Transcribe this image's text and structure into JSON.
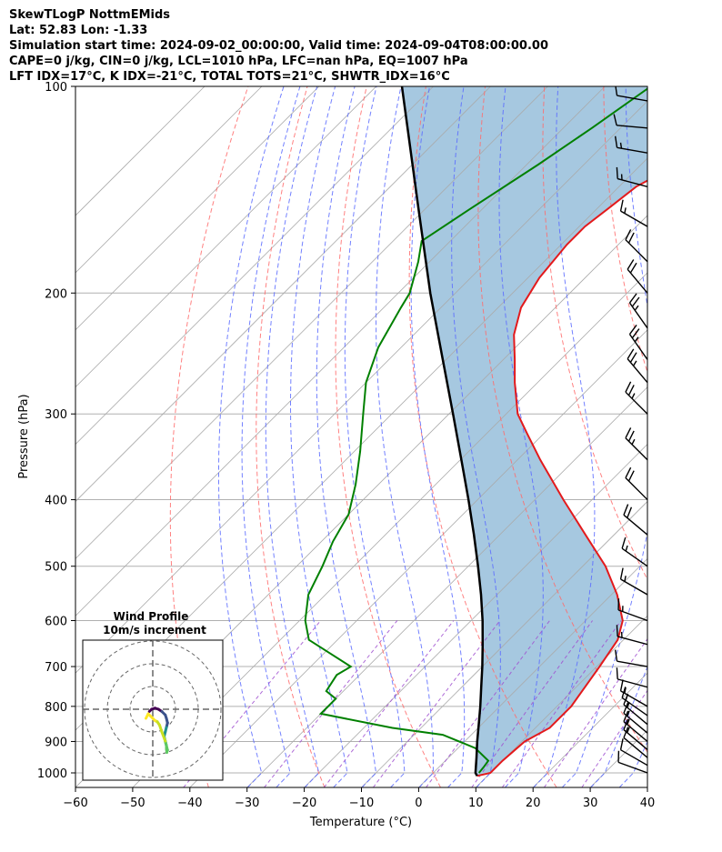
{
  "header": {
    "line1": "SkewTLogP NottmEMids",
    "line2": "Lat: 52.83   Lon: -1.33",
    "line3": "Simulation start time: 2024-09-02_00:00:00, Valid time: 2024-09-04T08:00:00.00",
    "line4": "CAPE=0 j/kg, CIN=0 j/kg, LCL=1010 hPa, LFC=nan hPa, EQ=1007 hPa",
    "line5": "LFT IDX=17°C, K IDX=-21°C, TOTAL TOTS=21°C, SHWTR_IDX=16°C"
  },
  "hodograph": {
    "title": "Wind Profile",
    "subtitle": "10m/s increment"
  },
  "colors": {
    "temperature": "#e31a1c",
    "dewpoint": "#008000",
    "parcel": "#000000",
    "cape_fill": "#a6c8e0",
    "dry_adiabat": "#ff6b6b",
    "moist_adiabat": "#5a6bff",
    "mixing_ratio": "#a050d0",
    "isotherm": "#aaaaaa"
  },
  "chart_data": {
    "type": "line",
    "title": "SkewTLogP NottmEMids",
    "xlabel": "Temperature (°C)",
    "ylabel": "Pressure (hPa)",
    "xlim": [
      -60,
      40
    ],
    "ylim": [
      1050,
      100
    ],
    "x_ticks": [
      -60,
      -50,
      -40,
      -30,
      -20,
      -10,
      0,
      10,
      20,
      30,
      40
    ],
    "x_tick_labels": [
      "−60",
      "−50",
      "−40",
      "−30",
      "−20",
      "−10",
      "0",
      "10",
      "20",
      "30",
      "40"
    ],
    "y_ticks": [
      1000,
      900,
      800,
      700,
      600,
      500,
      400,
      300,
      200,
      100
    ],
    "grid": true,
    "series": [
      {
        "name": "Temperature",
        "pressure": [
          1010,
          1000,
          960,
          900,
          860,
          800,
          700,
          640,
          600,
          550,
          500,
          450,
          400,
          350,
          320,
          300,
          270,
          250,
          230,
          210,
          190,
          170,
          160,
          150,
          140,
          128,
          115,
          105,
          100
        ],
        "values": [
          8.2,
          10,
          10,
          10.5,
          12.5,
          12.5,
          10.5,
          9.0,
          6.5,
          1.0,
          -6.0,
          -15.0,
          -25.0,
          -36.0,
          -43.0,
          -48.0,
          -54.0,
          -58.0,
          -62.5,
          -66.0,
          -68.0,
          -69.0,
          -69.0,
          -68.0,
          -67.0,
          -63.0,
          -59.0,
          -57.0,
          -56.0
        ]
      },
      {
        "name": "Dewpoint",
        "pressure": [
          1000,
          980,
          960,
          920,
          880,
          860,
          820,
          780,
          760,
          720,
          700,
          640,
          600,
          550,
          500,
          460,
          420,
          380,
          340,
          300,
          270,
          240,
          210,
          200,
          180,
          168,
          150,
          130,
          115,
          100
        ],
        "values": [
          8.0,
          7.8,
          7.5,
          3.0,
          -5.0,
          -15.0,
          -30.0,
          -30.0,
          -33.0,
          -34.0,
          -33.0,
          -45.0,
          -49.0,
          -53.0,
          -55.5,
          -58.0,
          -60.0,
          -64.0,
          -69.0,
          -75.0,
          -80.0,
          -84.0,
          -87.0,
          -88.0,
          -92.0,
          -95.0,
          -92.0,
          -88.0,
          -85.0,
          -82.0
        ]
      },
      {
        "name": "Parcel",
        "pressure": [
          1010,
          1000,
          950,
          900,
          850,
          800,
          750,
          700,
          650,
          600,
          550,
          500,
          450,
          400,
          350,
          300,
          250,
          200,
          150,
          100
        ],
        "values": [
          8.2,
          7.4,
          4.9,
          2.2,
          -0.5,
          -3.4,
          -6.6,
          -10.0,
          -13.8,
          -18.0,
          -22.8,
          -28.3,
          -34.5,
          -41.6,
          -49.8,
          -59.3,
          -70.6,
          -84.4,
          -101.5,
          -125.5
        ]
      }
    ],
    "wind_barbs": {
      "pressure": [
        1000,
        975,
        950,
        925,
        900,
        875,
        850,
        825,
        800,
        750,
        700,
        650,
        600,
        550,
        500,
        450,
        400,
        350,
        300,
        270,
        250,
        225,
        200,
        180,
        160,
        140,
        125,
        115,
        105
      ],
      "speed_kt": [
        10,
        10,
        10,
        15,
        15,
        15,
        15,
        15,
        15,
        10,
        10,
        15,
        15,
        15,
        15,
        20,
        20,
        25,
        25,
        25,
        25,
        25,
        20,
        20,
        15,
        15,
        15,
        10,
        10
      ],
      "direction_deg": [
        290,
        300,
        310,
        310,
        310,
        310,
        310,
        305,
        300,
        285,
        280,
        285,
        290,
        300,
        305,
        310,
        315,
        315,
        315,
        320,
        325,
        325,
        320,
        315,
        300,
        285,
        280,
        275,
        280
      ]
    },
    "hodograph": {
      "title": "Wind Profile",
      "subtitle": "10m/s increment",
      "ring_increment_ms": 10,
      "rings": 3,
      "u_ms": [
        -1.5,
        -0.5,
        1.0,
        2.5,
        4.0,
        5.5,
        6.0,
        6.5,
        6.0,
        5.5,
        5.0,
        5.5,
        6.0,
        6.0,
        6.2,
        6.5,
        5.5,
        4.0,
        3.0,
        2.0,
        1.0,
        0.0,
        -1.0,
        -2.0,
        -3.0
      ],
      "v_ms": [
        -1.0,
        0.0,
        0.5,
        0.0,
        -1.0,
        -2.5,
        -4.0,
        -6.0,
        -8.0,
        -10.0,
        -12.0,
        -14.0,
        -16.0,
        -17.5,
        -19.0,
        -18.0,
        -14.0,
        -10.0,
        -7.0,
        -5.5,
        -5.0,
        -4.0,
        -3.0,
        -2.0,
        -4.0
      ]
    }
  }
}
